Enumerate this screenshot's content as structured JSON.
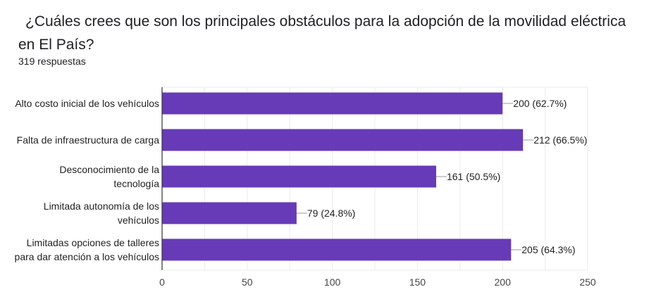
{
  "question": "¿Cuáles crees que son los principales obstáculos para la adopción de la movilidad eléctrica en El País?",
  "responses": "319 respuestas",
  "colors": {
    "bar": "#673ab7",
    "grid": "#ebebeb",
    "axis": "#333333",
    "text": "#222222"
  },
  "chart_data": {
    "type": "bar",
    "orientation": "horizontal",
    "categories": [
      [
        "Alto costo inicial de los vehículos"
      ],
      [
        "Falta de infraestructura de carga"
      ],
      [
        "Desconocimiento de la",
        "tecnología"
      ],
      [
        "Limitada autonomía de los",
        "vehículos"
      ],
      [
        "Limitadas opciones de talleres",
        "para dar atención a los vehículos"
      ]
    ],
    "values": [
      200,
      212,
      161,
      79,
      205
    ],
    "data_labels": [
      "200 (62.7%)",
      "212 (66.5%)",
      "161 (50.5%)",
      "79 (24.8%)",
      "205 (64.3%)"
    ],
    "xlim": [
      0,
      250
    ],
    "xticks": [
      0,
      50,
      100,
      150,
      200,
      250
    ],
    "grid": true,
    "legend": "none"
  }
}
